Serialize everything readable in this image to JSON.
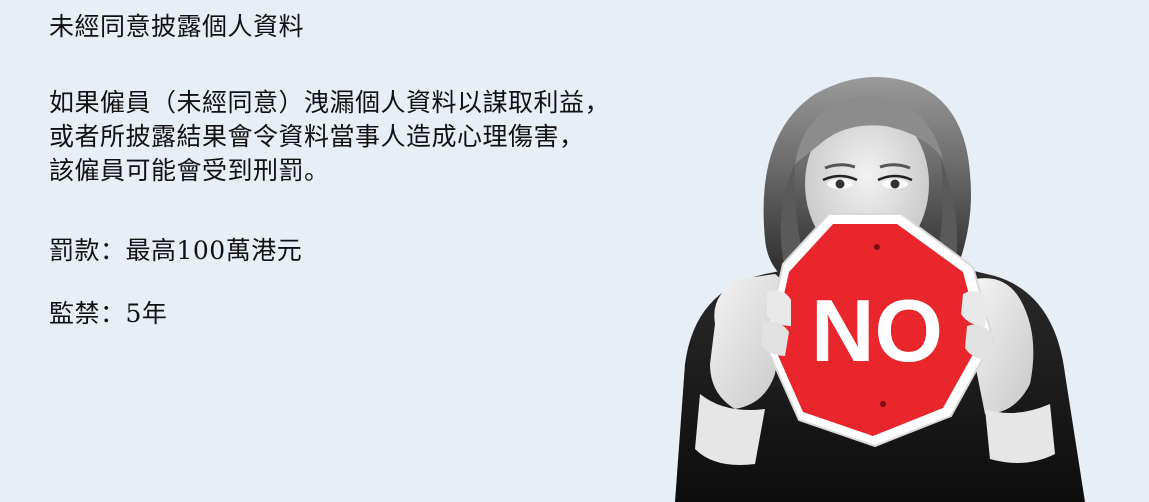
{
  "slide": {
    "title": "未經同意披露個人資料",
    "paragraph_lines": [
      "如果僱員（未經同意）洩漏個人資料以謀取利益，",
      "或者所披露結果會令資料當事人造成心理傷害，",
      "該僱員可能會受到刑罰。"
    ],
    "fine": "罰款：最高100萬港元",
    "imprisonment": "監禁：5年"
  },
  "photo": {
    "sign_text": "NO",
    "sign_color": "#e8262b",
    "background_color": "#e8eef6"
  }
}
